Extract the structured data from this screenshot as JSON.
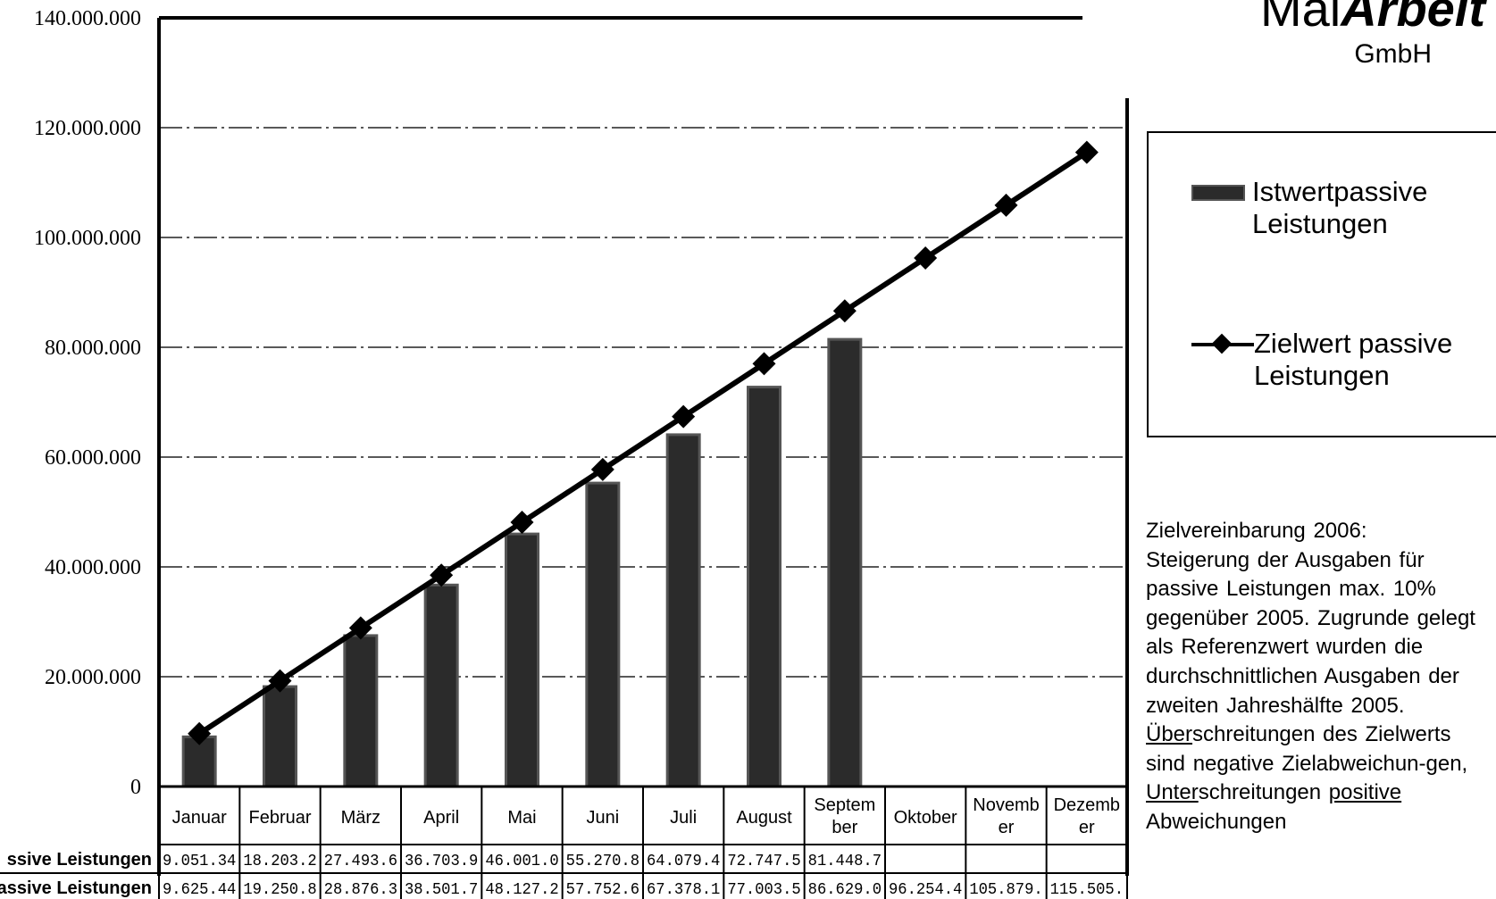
{
  "brand": {
    "name_regular": "Mal",
    "name_bold": "Arbeit",
    "suffix": "GmbH"
  },
  "chart_data": {
    "type": "bar",
    "title": "",
    "xlabel": "",
    "ylabel": "",
    "ylim": [
      0,
      140000000
    ],
    "y_ticks": [
      "0",
      "20.000.000",
      "40.000.000",
      "60.000.000",
      "80.000.000",
      "100.000.000",
      "120.000.000",
      "140.000.000"
    ],
    "grid": true,
    "legend_position": "right",
    "categories": [
      "Januar",
      "Februar",
      "März",
      "April",
      "Mai",
      "Juni",
      "Juli",
      "August",
      "Septem\nber",
      "Oktober",
      "Novemb\ner",
      "Dezemb\ner"
    ],
    "series": [
      {
        "name": "Istwertpassive\nLeistungen",
        "kind": "bar",
        "values": [
          9051340,
          18203200,
          27493600,
          36703900,
          46001000,
          55270800,
          64079400,
          72747500,
          81448700,
          null,
          null,
          null
        ]
      },
      {
        "name": "Zielwert passive\nLeistungen",
        "kind": "line",
        "marker": "diamond",
        "values": [
          9625440,
          19250800,
          28876300,
          38501700,
          48127200,
          57752600,
          67378100,
          77003500,
          86629000,
          96254400,
          105879000,
          115505000
        ]
      }
    ],
    "table": {
      "row_labels": [
        "ssive Leistungen",
        "assive Leistungen"
      ],
      "rows": [
        [
          "9.051.34",
          "18.203.2",
          "27.493.6",
          "36.703.9",
          "46.001.0",
          "55.270.8",
          "64.079.4",
          "72.747.5",
          "81.448.7",
          "",
          "",
          ""
        ],
        [
          "9.625.44",
          "19.250.8",
          "28.876.3",
          "38.501.7",
          "48.127.2",
          "57.752.6",
          "67.378.1",
          "77.003.5",
          "86.629.0",
          "96.254.4",
          "105.879.",
          "115.505."
        ]
      ]
    }
  },
  "note": {
    "lines": [
      "Zielvereinbarung 2006:",
      "Steigerung der Ausgaben für",
      "passive Leistungen max. 10%",
      "gegenüber 2005. Zugrunde gelegt",
      "als Referenzwert wurden die",
      "durchschnittlichen Ausgaben der",
      "zweiten Jahreshälfte 2005."
    ],
    "u1": "Über",
    "t1": "schreitungen des Zielwerts",
    "t2": "sind negative Zielabweichun-gen,",
    "u2": "Unter",
    "t3": "schreitungen ",
    "u3": "positive",
    "t4": "Abweichungen"
  },
  "colors": {
    "bar_fill": "#2b2b2b",
    "bar_edge": "#555555",
    "line": "#000000",
    "grid": "#222222"
  }
}
